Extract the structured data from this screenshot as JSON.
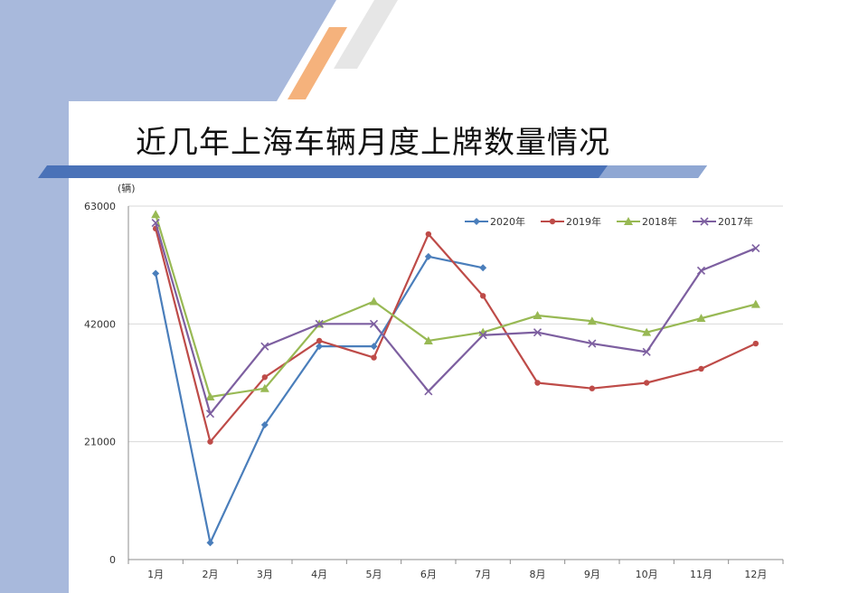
{
  "title": "近几年上海车辆月度上牌数量情况",
  "colors": {
    "sidebar": "#a8b9dc",
    "stripe_orange": "#f5b27c",
    "stripe_gray": "#e6e6e6",
    "banner_blue": "#4a72b8",
    "banner_light": "#8fa7d3"
  },
  "chart_data": {
    "type": "line",
    "unit_label": "(辆)",
    "categories": [
      "1月",
      "2月",
      "3月",
      "4月",
      "5月",
      "6月",
      "7月",
      "8月",
      "9月",
      "10月",
      "11月",
      "12月"
    ],
    "ylim": [
      0,
      63000
    ],
    "yticks": [
      "0",
      "21000",
      "42000",
      "63000"
    ],
    "grid": true,
    "legend_position": "top-right",
    "series": [
      {
        "name": "2020年",
        "color": "#4a7ebb",
        "marker": "diamond",
        "values": [
          51000,
          3000,
          24000,
          38000,
          38000,
          54000,
          52000,
          null,
          null,
          null,
          null,
          null
        ]
      },
      {
        "name": "2019年",
        "color": "#be4b48",
        "marker": "dot",
        "values": [
          59000,
          21000,
          32500,
          39000,
          36000,
          58000,
          47000,
          31500,
          30500,
          31500,
          34000,
          38500
        ]
      },
      {
        "name": "2018年",
        "color": "#98b954",
        "marker": "triangle",
        "values": [
          61500,
          29000,
          30500,
          42000,
          46000,
          39000,
          40500,
          43500,
          42500,
          40500,
          43000,
          45500
        ]
      },
      {
        "name": "2017年",
        "color": "#7d5fa0",
        "marker": "cross",
        "values": [
          60000,
          26000,
          38000,
          42000,
          42000,
          30000,
          40000,
          40500,
          38500,
          37000,
          51500,
          55500
        ]
      }
    ]
  }
}
